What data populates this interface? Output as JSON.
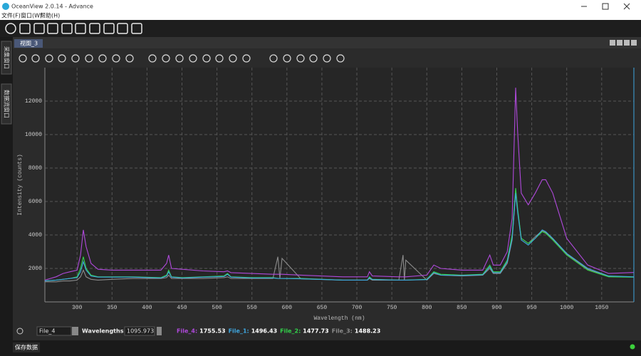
{
  "window": {
    "title": "OceanView 2.0.14  - Advance"
  },
  "menu": [
    "文件(F)",
    "窗口(W)",
    "帮助(H)"
  ],
  "side_tabs": [
    "采集窗口",
    "数据流窗口"
  ],
  "tab": "视图_3",
  "chart_data": {
    "type": "line",
    "x_label": "Wavelength (nm)",
    "y_label": "Intensity (counts)",
    "x": [
      254,
      270,
      280,
      290,
      300,
      305,
      309,
      313,
      320,
      330,
      350,
      380,
      420,
      428,
      431,
      435,
      450,
      480,
      510,
      515,
      520,
      550,
      580,
      587,
      590,
      593,
      620,
      680,
      715,
      718,
      722,
      760,
      766,
      768,
      770,
      800,
      810,
      820,
      850,
      880,
      890,
      895,
      905,
      915,
      922,
      927,
      930,
      935,
      945,
      955,
      965,
      970,
      980,
      1000,
      1030,
      1060,
      1096
    ],
    "series": [
      {
        "name": "File_4",
        "color": "#b049dc",
        "values": [
          1300,
          1500,
          1700,
          1800,
          1900,
          2800,
          4300,
          3300,
          2300,
          1950,
          1900,
          1900,
          1900,
          2300,
          2800,
          2000,
          1950,
          1850,
          1800,
          1850,
          1750,
          1700,
          1650,
          1650,
          1650,
          1650,
          1600,
          1500,
          1500,
          1800,
          1550,
          1500,
          1500,
          1500,
          1500,
          1600,
          2200,
          2000,
          1900,
          1900,
          2800,
          2200,
          2200,
          3000,
          5000,
          12800,
          10000,
          6500,
          5800,
          6500,
          7300,
          7300,
          6500,
          3800,
          2200,
          1700,
          1755.53
        ]
      },
      {
        "name": "File_1",
        "color": "#3fa7e0",
        "values": [
          1250,
          1300,
          1350,
          1400,
          1450,
          1800,
          2400,
          1900,
          1550,
          1480,
          1480,
          1480,
          1430,
          1550,
          1800,
          1480,
          1430,
          1480,
          1520,
          1650,
          1480,
          1430,
          1430,
          1400,
          1400,
          1400,
          1380,
          1300,
          1300,
          1450,
          1330,
          1300,
          1300,
          1300,
          1300,
          1330,
          1750,
          1600,
          1580,
          1620,
          2100,
          1750,
          1750,
          2400,
          3800,
          6500,
          5300,
          3700,
          3400,
          3800,
          4300,
          4200,
          3800,
          2900,
          2000,
          1550,
          1496.43
        ]
      },
      {
        "name": "File_2",
        "color": "#32d24a",
        "values": [
          1250,
          1300,
          1350,
          1400,
          1500,
          2000,
          2700,
          2000,
          1600,
          1500,
          1500,
          1500,
          1450,
          1600,
          1900,
          1500,
          1450,
          1500,
          1550,
          1700,
          1500,
          1450,
          1450,
          1400,
          1400,
          1400,
          1400,
          1300,
          1300,
          1500,
          1350,
          1300,
          1300,
          1300,
          1300,
          1350,
          1800,
          1650,
          1600,
          1650,
          2200,
          1800,
          1800,
          2500,
          4000,
          6800,
          5500,
          3800,
          3500,
          3800,
          4200,
          4100,
          3700,
          2800,
          1900,
          1500,
          1477.73
        ]
      },
      {
        "name": "File_3",
        "color": "#8c8c8c",
        "values": [
          1200,
          1200,
          1250,
          1250,
          1300,
          1500,
          1900,
          1500,
          1350,
          1300,
          1350,
          1400,
          1400,
          1450,
          1600,
          1400,
          1400,
          1400,
          1450,
          1500,
          1400,
          1400,
          1400,
          2700,
          1400,
          2600,
          1380,
          1300,
          1300,
          1400,
          1300,
          1300,
          2800,
          1300,
          2500,
          1300,
          1700,
          1600,
          1550,
          1600,
          2000,
          1700,
          1700,
          2300,
          3700,
          6600,
          5400,
          3800,
          3500,
          3900,
          4250,
          4150,
          3750,
          2850,
          1950,
          1520,
          1488.23
        ]
      }
    ],
    "xlim": [
      254,
      1096
    ],
    "xticks": [
      300,
      350,
      400,
      450,
      500,
      550,
      600,
      650,
      700,
      750,
      800,
      850,
      900,
      950,
      1000,
      1050
    ],
    "ylim": [
      0,
      14000
    ],
    "yticks": [
      2000,
      4000,
      6000,
      8000,
      10000,
      12000
    ],
    "grid": true
  },
  "cursor": {
    "selected": "File_4",
    "wavelength_label": "Wavelengths (nm)",
    "wavelength": 1095.973,
    "readouts": [
      {
        "name": "File_4:",
        "value": 1755.53
      },
      {
        "name": "File_1:",
        "value": 1496.43
      },
      {
        "name": "File_2:",
        "value": 1477.73
      },
      {
        "name": "File_3:",
        "value": 1488.23
      }
    ]
  },
  "status": {
    "button": "保存数据"
  }
}
